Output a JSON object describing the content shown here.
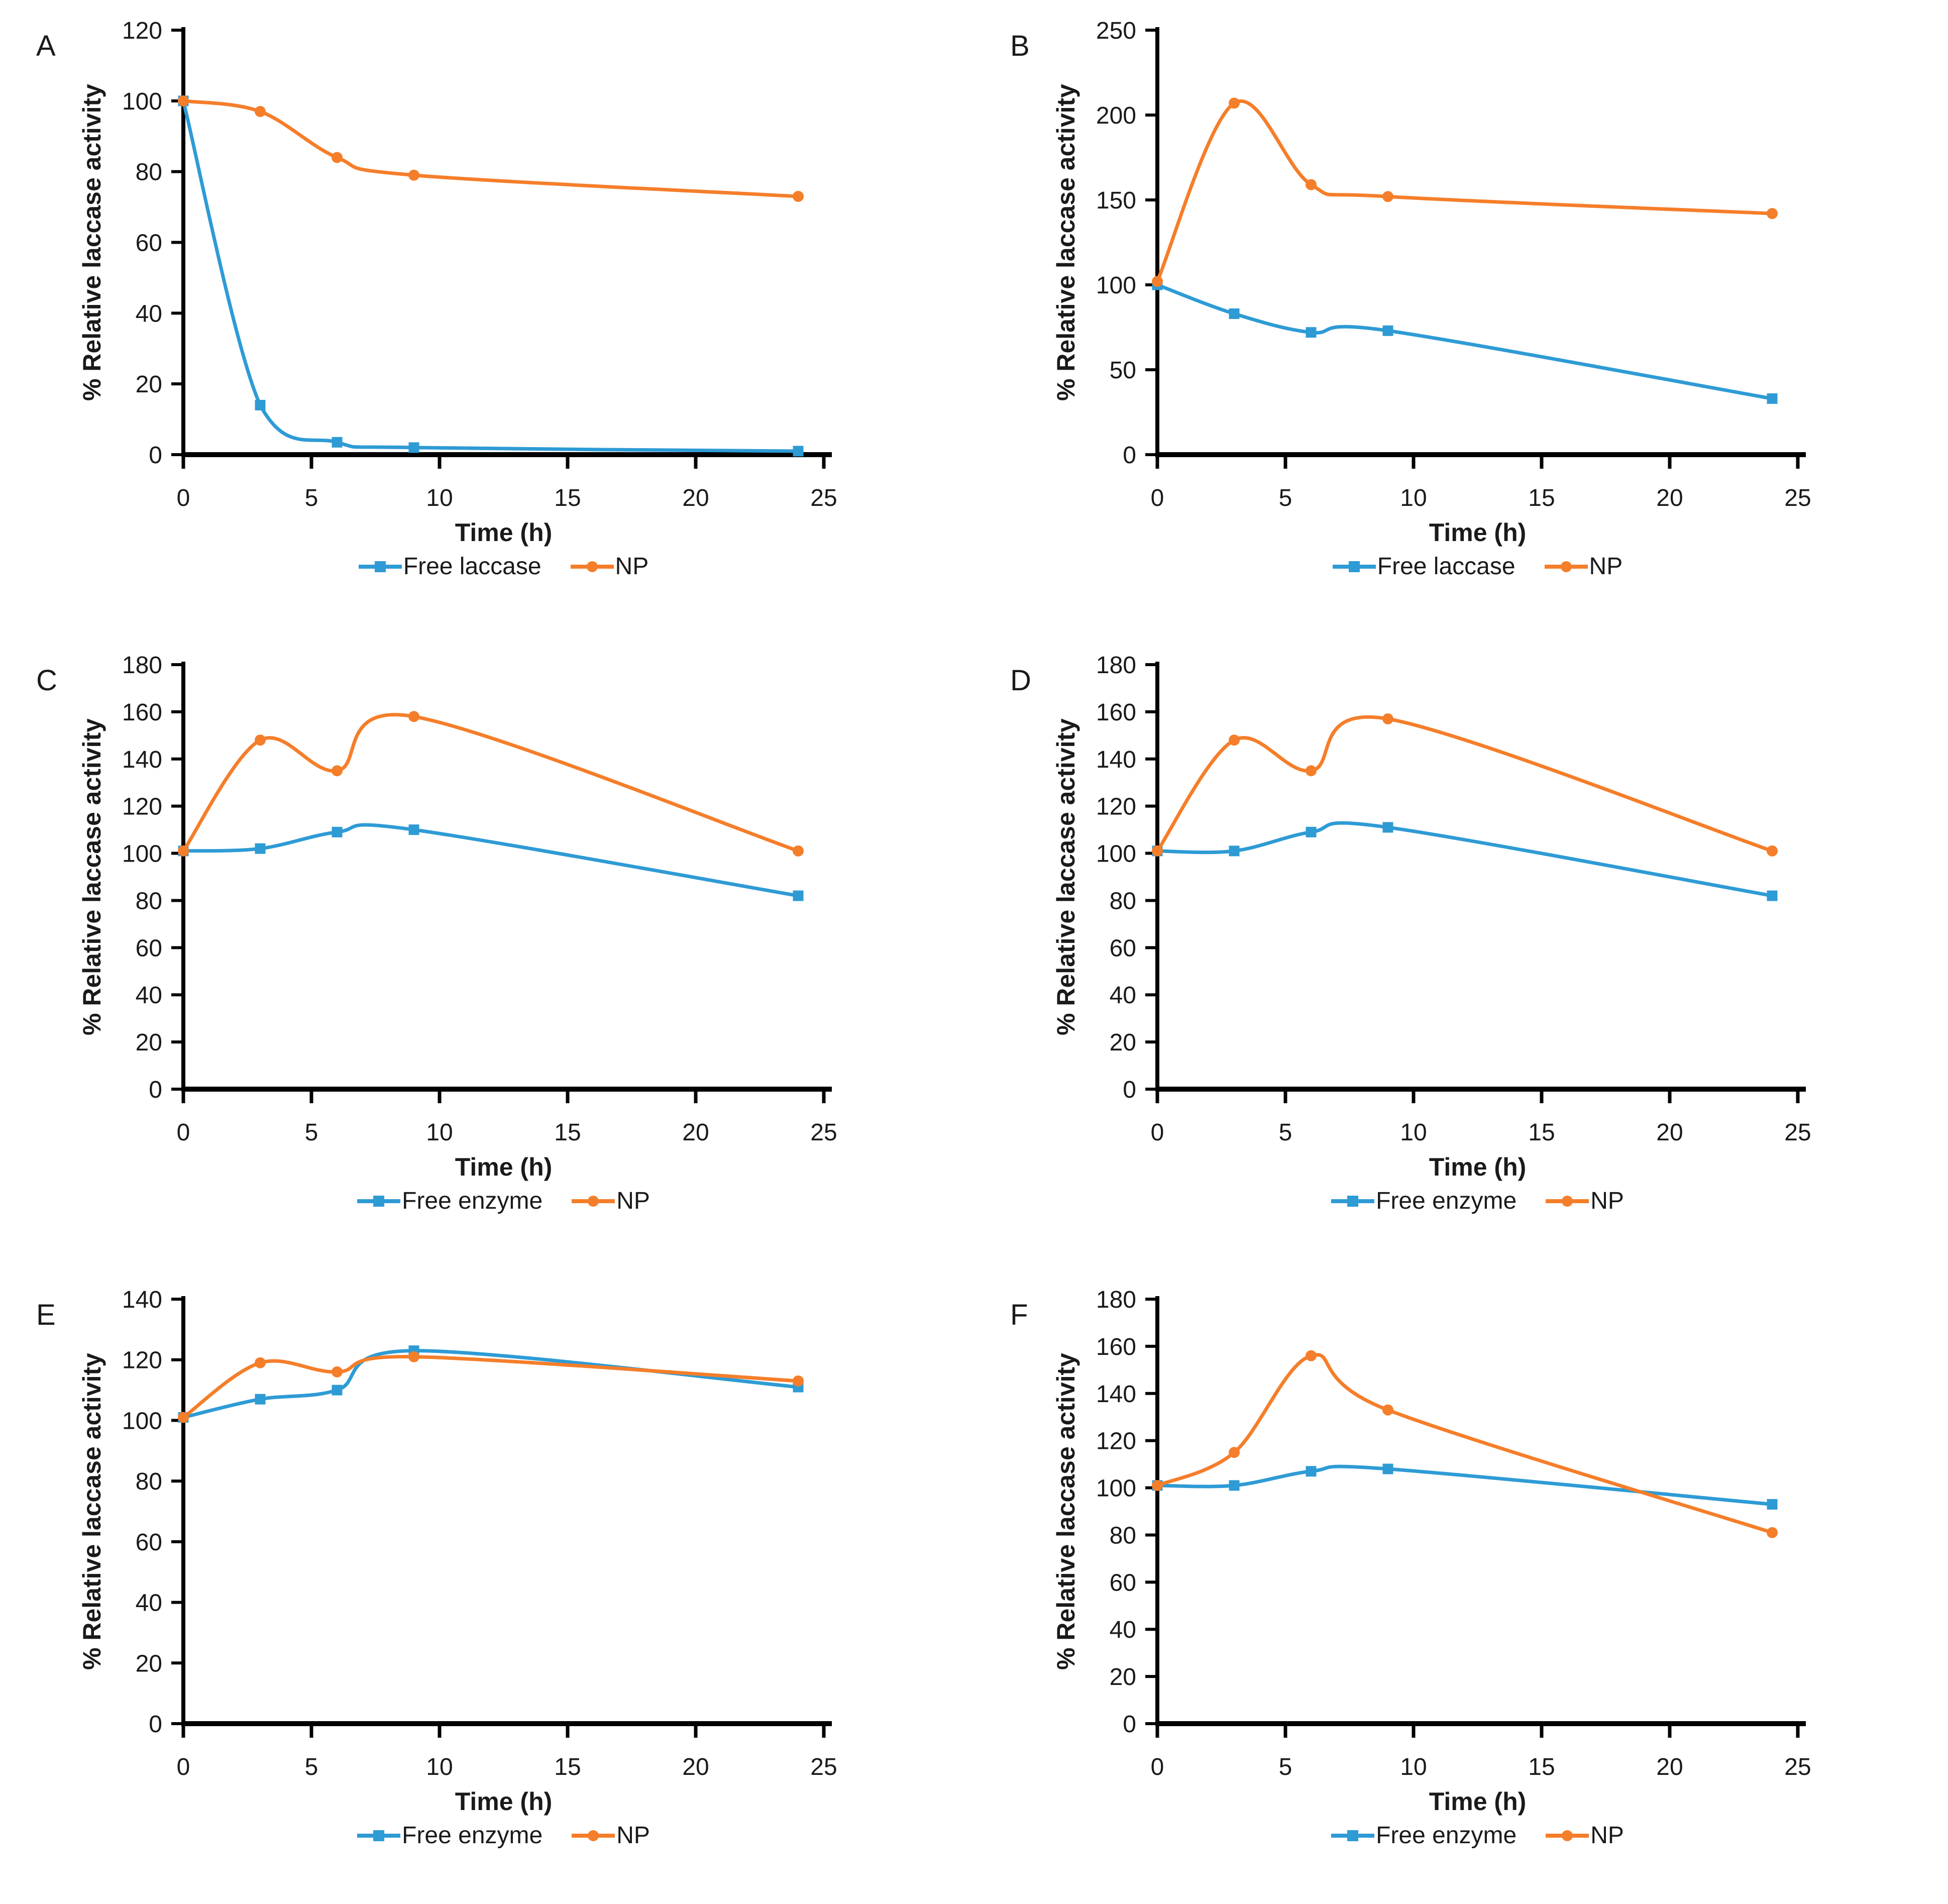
{
  "figure": {
    "background": "#ffffff",
    "description": "Six line charts (A-F) of % relative laccase activity vs time for free enzyme and nanoparticle-immobilized (NP) laccase"
  },
  "colors": {
    "blue": "#2E9BD5",
    "orange": "#F57E2A",
    "axis": "#000000",
    "text": "#1a1a1a"
  },
  "chart_data": [
    {
      "panel": "A",
      "type": "line",
      "title": "",
      "xlabel": "Time (h)",
      "ylabel": "% Relative laccase activity",
      "x": [
        0,
        3,
        6,
        9,
        24
      ],
      "xlim": [
        0,
        25
      ],
      "xticks": [
        0,
        5,
        10,
        15,
        20,
        25
      ],
      "ylim": [
        0,
        120
      ],
      "yticks": [
        0,
        20,
        40,
        60,
        80,
        100,
        120
      ],
      "grid": false,
      "legend_position": "bottom",
      "series": [
        {
          "name": "Free laccase",
          "color": "blue",
          "marker": "square",
          "values": [
            100,
            14,
            3.5,
            2,
            1
          ]
        },
        {
          "name": "NP",
          "color": "orange",
          "marker": "circle",
          "values": [
            100,
            97,
            84,
            79,
            73
          ]
        }
      ]
    },
    {
      "panel": "B",
      "type": "line",
      "title": "",
      "xlabel": "Time (h)",
      "ylabel": "% Relative laccase activity",
      "x": [
        0,
        3,
        6,
        9,
        24
      ],
      "xlim": [
        0,
        25
      ],
      "xticks": [
        0,
        5,
        10,
        15,
        20,
        25
      ],
      "ylim": [
        0,
        250
      ],
      "yticks": [
        0,
        50,
        100,
        150,
        200,
        250
      ],
      "grid": false,
      "legend_position": "bottom",
      "series": [
        {
          "name": "Free laccase",
          "color": "blue",
          "marker": "square",
          "values": [
            100,
            83,
            72,
            73,
            33
          ]
        },
        {
          "name": "NP",
          "color": "orange",
          "marker": "circle",
          "values": [
            102,
            207,
            159,
            152,
            142
          ]
        }
      ]
    },
    {
      "panel": "C",
      "type": "line",
      "title": "",
      "xlabel": "Time (h)",
      "ylabel": "% Relative laccase activity",
      "x": [
        0,
        3,
        6,
        9,
        24
      ],
      "xlim": [
        0,
        25
      ],
      "xticks": [
        0,
        5,
        10,
        15,
        20,
        25
      ],
      "ylim": [
        0,
        180
      ],
      "yticks": [
        0,
        20,
        40,
        60,
        80,
        100,
        120,
        140,
        160,
        180
      ],
      "grid": false,
      "legend_position": "bottom",
      "series": [
        {
          "name": "Free enzyme",
          "color": "blue",
          "marker": "square",
          "values": [
            101,
            102,
            109,
            110,
            82
          ]
        },
        {
          "name": "NP",
          "color": "orange",
          "marker": "circle",
          "values": [
            101,
            148,
            135,
            158,
            101
          ]
        }
      ]
    },
    {
      "panel": "D",
      "type": "line",
      "title": "",
      "xlabel": "Time (h)",
      "ylabel": "% Relative laccase activity",
      "x": [
        0,
        3,
        6,
        9,
        24
      ],
      "xlim": [
        0,
        25
      ],
      "xticks": [
        0,
        5,
        10,
        15,
        20,
        25
      ],
      "ylim": [
        0,
        180
      ],
      "yticks": [
        0,
        20,
        40,
        60,
        80,
        100,
        120,
        140,
        160,
        180
      ],
      "grid": false,
      "legend_position": "bottom",
      "series": [
        {
          "name": "Free enzyme",
          "color": "blue",
          "marker": "square",
          "values": [
            101,
            101,
            109,
            111,
            82
          ]
        },
        {
          "name": "NP",
          "color": "orange",
          "marker": "circle",
          "values": [
            101,
            148,
            135,
            157,
            101
          ]
        }
      ]
    },
    {
      "panel": "E",
      "type": "line",
      "title": "",
      "xlabel": "Time (h)",
      "ylabel": "% Relative laccase activity",
      "x": [
        0,
        3,
        6,
        9,
        24
      ],
      "xlim": [
        0,
        25
      ],
      "xticks": [
        0,
        5,
        10,
        15,
        20,
        25
      ],
      "ylim": [
        0,
        140
      ],
      "yticks": [
        0,
        20,
        40,
        60,
        80,
        100,
        120,
        140
      ],
      "grid": false,
      "legend_position": "bottom",
      "series": [
        {
          "name": "Free enzyme",
          "color": "blue",
          "marker": "square",
          "values": [
            101,
            107,
            110,
            123,
            111
          ]
        },
        {
          "name": "NP",
          "color": "orange",
          "marker": "circle",
          "values": [
            101,
            119,
            116,
            121,
            113
          ]
        }
      ]
    },
    {
      "panel": "F",
      "type": "line",
      "title": "",
      "xlabel": "Time (h)",
      "ylabel": "% Relative laccase activity",
      "x": [
        0,
        3,
        6,
        9,
        24
      ],
      "xlim": [
        0,
        25
      ],
      "xticks": [
        0,
        5,
        10,
        15,
        20,
        25
      ],
      "ylim": [
        0,
        180
      ],
      "yticks": [
        0,
        20,
        40,
        60,
        80,
        100,
        120,
        140,
        160,
        180
      ],
      "grid": false,
      "legend_position": "bottom",
      "series": [
        {
          "name": "Free enzyme",
          "color": "blue",
          "marker": "square",
          "values": [
            101,
            101,
            107,
            108,
            93
          ]
        },
        {
          "name": "NP",
          "color": "orange",
          "marker": "circle",
          "values": [
            101,
            115,
            156,
            133,
            81
          ]
        }
      ]
    }
  ]
}
